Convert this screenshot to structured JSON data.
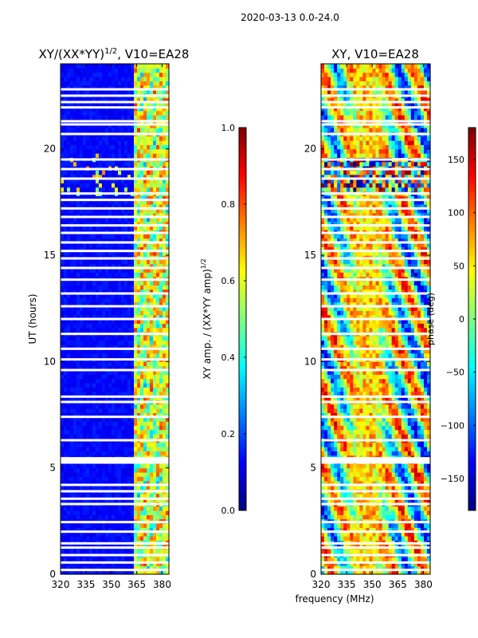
{
  "suptitle": "2020-03-13 0.0-24.0",
  "shared_xlabel": "frequency (MHz)",
  "chart_data": [
    {
      "type": "heatmap",
      "title_main": "XY/(XX*YY)",
      "title_sup": "1/2",
      "title_tail": ", V10=EA28",
      "ylabel": "UT (hours)",
      "xlim": [
        320,
        384
      ],
      "ylim": [
        0,
        24
      ],
      "xticks": [
        320,
        335,
        350,
        365,
        380
      ],
      "yticks": [
        0,
        5,
        10,
        15,
        20
      ],
      "colorbar": {
        "range": [
          0.0,
          1.0
        ],
        "ticks": [
          "0.0",
          "0.2",
          "0.4",
          "0.6",
          "0.8",
          "1.0"
        ],
        "tick_values": [
          0.0,
          0.2,
          0.4,
          0.6,
          0.8,
          1.0
        ],
        "label_main": "XY amp. / (XX*YY amp)",
        "label_sup": "1/2",
        "colormap": "jet"
      },
      "flagged_rows_ut": [
        0.2,
        0.55,
        0.9,
        1.25,
        1.45,
        2.0,
        2.45,
        3.3,
        3.55,
        3.9,
        4.2,
        5.25,
        5.35,
        5.45,
        6.3,
        7.4,
        8.1,
        8.35,
        9.6,
        10.1,
        10.6,
        11.3,
        12.0,
        12.6,
        13.2,
        13.85,
        14.4,
        14.85,
        15.2,
        15.6,
        16.05,
        16.4,
        16.8,
        17.2,
        17.6,
        17.9,
        18.6,
        19.05,
        19.5,
        20.7,
        21.15,
        21.3,
        21.95,
        22.2,
        22.5,
        22.8
      ],
      "bright_band_mhz": [
        363,
        384
      ]
    },
    {
      "type": "heatmap",
      "title_main": "XY, V10=EA28",
      "ylabel": "",
      "xlim": [
        320,
        384
      ],
      "ylim": [
        0,
        24
      ],
      "xticks": [
        320,
        335,
        350,
        365,
        380
      ],
      "yticks": [
        0,
        5,
        10,
        15,
        20
      ],
      "colorbar": {
        "range": [
          -180,
          180
        ],
        "ticks": [
          "−150",
          "−100",
          "−50",
          "0",
          "50",
          "100",
          "150"
        ],
        "tick_values": [
          -150,
          -100,
          -50,
          0,
          50,
          100,
          150
        ],
        "label_main": "phase (deg)",
        "colormap": "jet"
      },
      "flagged_rows_ut": [
        0.2,
        0.55,
        0.9,
        1.25,
        1.45,
        2.0,
        2.45,
        3.3,
        3.55,
        3.9,
        4.2,
        5.25,
        5.35,
        5.45,
        6.3,
        7.4,
        8.1,
        8.35,
        9.6,
        10.1,
        10.6,
        11.3,
        12.0,
        12.6,
        13.2,
        13.85,
        14.4,
        14.85,
        15.2,
        15.6,
        16.05,
        16.4,
        16.8,
        17.2,
        17.6,
        17.9,
        18.6,
        19.05,
        19.5,
        20.7,
        21.15,
        21.3,
        21.95,
        22.2,
        22.5,
        22.8
      ]
    }
  ]
}
